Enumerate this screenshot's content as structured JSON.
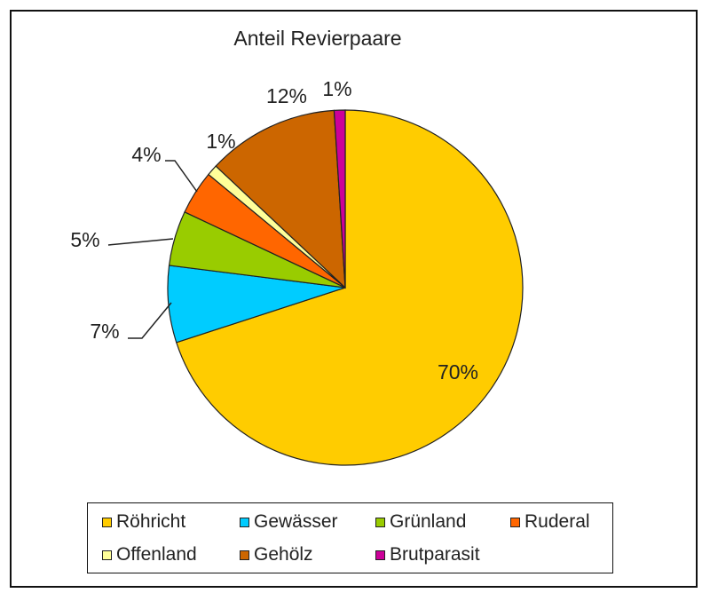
{
  "chart_data": {
    "type": "pie",
    "title": "Anteil Revierpaare",
    "slices": [
      {
        "label": "Röhricht",
        "value": 70,
        "display": "70%",
        "color": "#FFCC00"
      },
      {
        "label": "Gewässer",
        "value": 7,
        "display": "7%",
        "color": "#00CCFF"
      },
      {
        "label": "Grünland",
        "value": 5,
        "display": "5%",
        "color": "#99CC00"
      },
      {
        "label": "Ruderal",
        "value": 4,
        "display": "4%",
        "color": "#FF6600"
      },
      {
        "label": "Offenland",
        "value": 1,
        "display": "1%",
        "color": "#FFFF99"
      },
      {
        "label": "Gehölz",
        "value": 12,
        "display": "12%",
        "color": "#CC6600"
      },
      {
        "label": "Brutparasit",
        "value": 1,
        "display": "1%",
        "color": "#CC0099"
      }
    ],
    "legend_position": "bottom"
  }
}
